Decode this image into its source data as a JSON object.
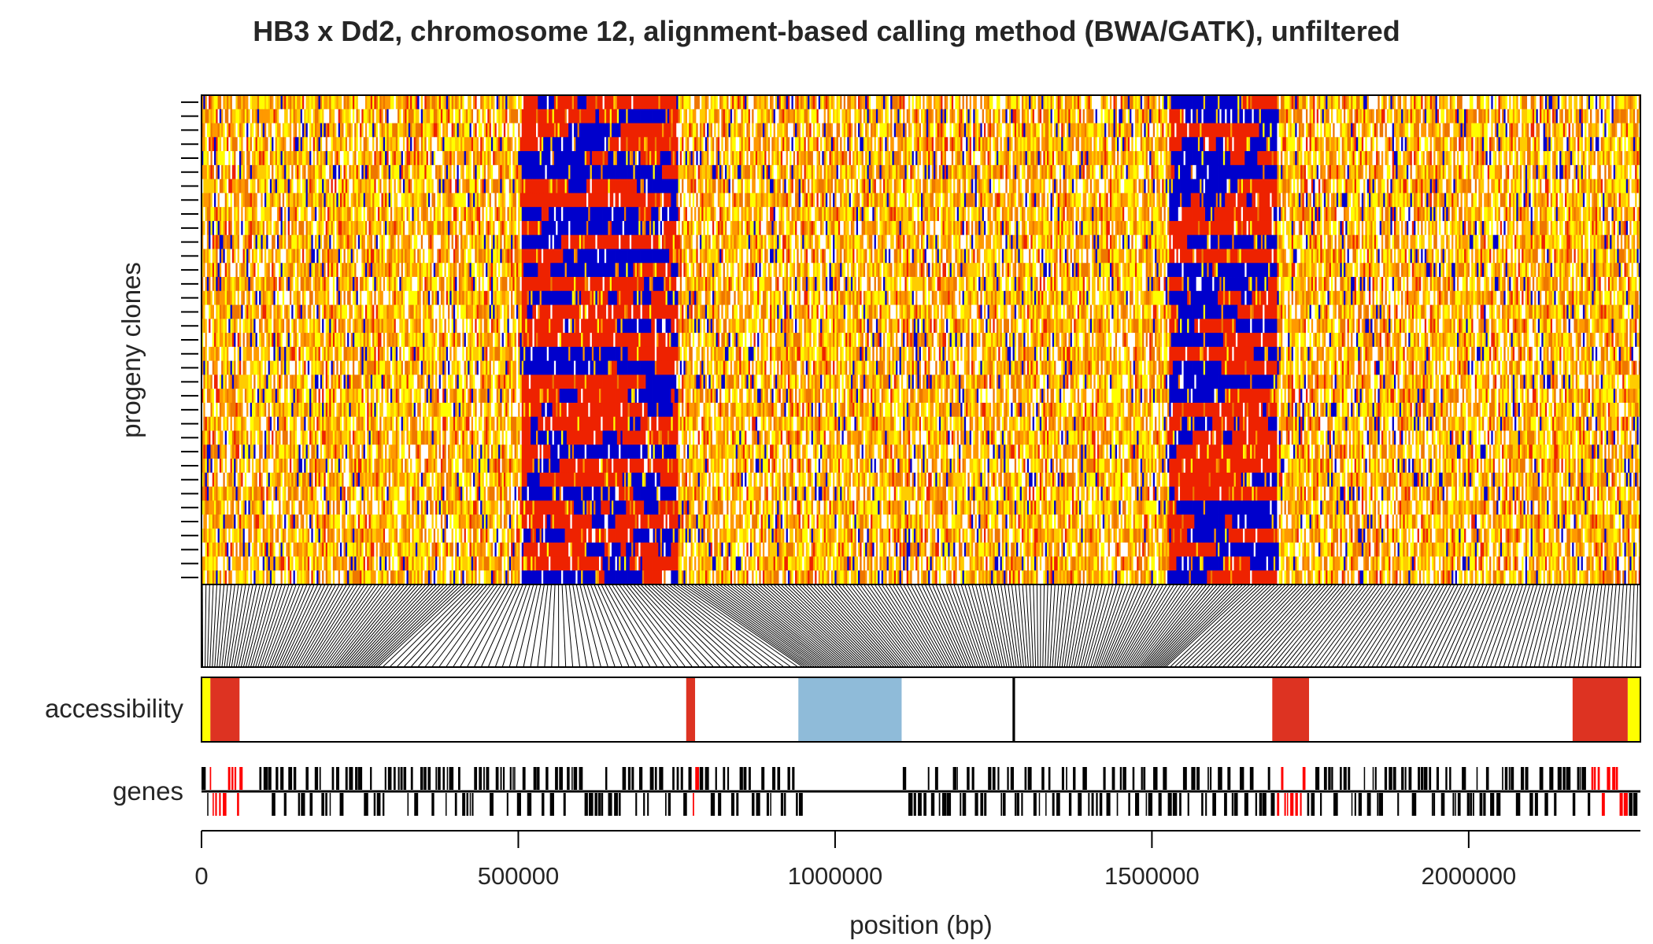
{
  "chart_data": {
    "type": "heatmap",
    "title": "HB3 x Dd2, chromosome 12, alignment-based calling method (BWA/GATK), unfiltered",
    "xlabel": "position (bp)",
    "ylabel": "progeny clones",
    "xlim": [
      0,
      2271000
    ],
    "xticks": [
      0,
      500000,
      1000000,
      1500000,
      2000000
    ],
    "xtick_labels": [
      "0",
      "500000",
      "1000000",
      "1500000",
      "2000000"
    ],
    "progeny_count": 35,
    "variant_count": 800,
    "colors": {
      "parent_a": "#0000cc",
      "parent_b": "#ee2200",
      "missing": "#ffffff",
      "low_quality": [
        "#ffff00",
        "#ffcc00",
        "#ff9900",
        "#ee7700"
      ],
      "accessibility_core": "#ffffff",
      "accessibility_hypervariable": "#dd3322",
      "accessibility_subtelomere": "#ffff00",
      "accessibility_centromere": "#8fbbd9",
      "gene_normal": "#000000",
      "gene_variable_family": "#ff0000"
    },
    "accessibility": {
      "label": "accessibility",
      "regions": [
        {
          "type": "subtelomere",
          "start": 0,
          "end": 14000
        },
        {
          "type": "hypervariable",
          "start": 14000,
          "end": 60000
        },
        {
          "type": "hypervariable",
          "start": 765000,
          "end": 779000
        },
        {
          "type": "centromere",
          "start": 942000,
          "end": 1105000
        },
        {
          "type": "boundary",
          "start": 1280000,
          "end": 1284000
        },
        {
          "type": "hypervariable",
          "start": 1690000,
          "end": 1748000
        },
        {
          "type": "hypervariable",
          "start": 2164000,
          "end": 2251000
        },
        {
          "type": "subtelomere",
          "start": 2251000,
          "end": 2271000
        }
      ]
    },
    "genes": {
      "label": "genes",
      "variable_family_regions": [
        {
          "start": 12000,
          "end": 60000
        },
        {
          "start": 770000,
          "end": 780000
        },
        {
          "start": 1690000,
          "end": 1745000
        },
        {
          "start": 2190000,
          "end": 2250000
        }
      ],
      "gene_free_gaps": [
        {
          "start": 60000,
          "end": 90000
        },
        {
          "start": 945000,
          "end": 1100000
        }
      ]
    }
  }
}
